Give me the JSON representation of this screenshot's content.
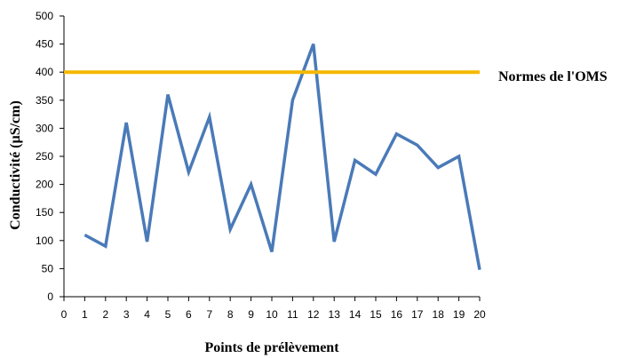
{
  "chart_data": {
    "type": "line",
    "title": "",
    "xlabel": "Points de prélèvement",
    "ylabel": "Conductivité (µS/cm)",
    "x": [
      1,
      2,
      3,
      4,
      5,
      6,
      7,
      8,
      9,
      10,
      11,
      12,
      13,
      14,
      15,
      16,
      17,
      18,
      19,
      20
    ],
    "xlim": [
      0,
      20
    ],
    "ylim": [
      0,
      500
    ],
    "x_ticks": [
      "0",
      "1",
      "2",
      "3",
      "4",
      "5",
      "6",
      "7",
      "8",
      "9",
      "10",
      "11",
      "12",
      "13",
      "14",
      "15",
      "16",
      "17",
      "18",
      "19",
      "20"
    ],
    "y_ticks": [
      "0",
      "50",
      "100",
      "150",
      "200",
      "250",
      "300",
      "350",
      "400",
      "450",
      "500"
    ],
    "grid": false,
    "series": [
      {
        "values": [
          110,
          90,
          310,
          98,
          360,
          222,
          320,
          120,
          200,
          80,
          350,
          450,
          98,
          243,
          218,
          290,
          270,
          230,
          250,
          48
        ],
        "color": "#4a7ab8"
      }
    ],
    "reference_line": {
      "label": "Normes de l'OMS",
      "value": 400,
      "color": "#f5b800"
    }
  }
}
